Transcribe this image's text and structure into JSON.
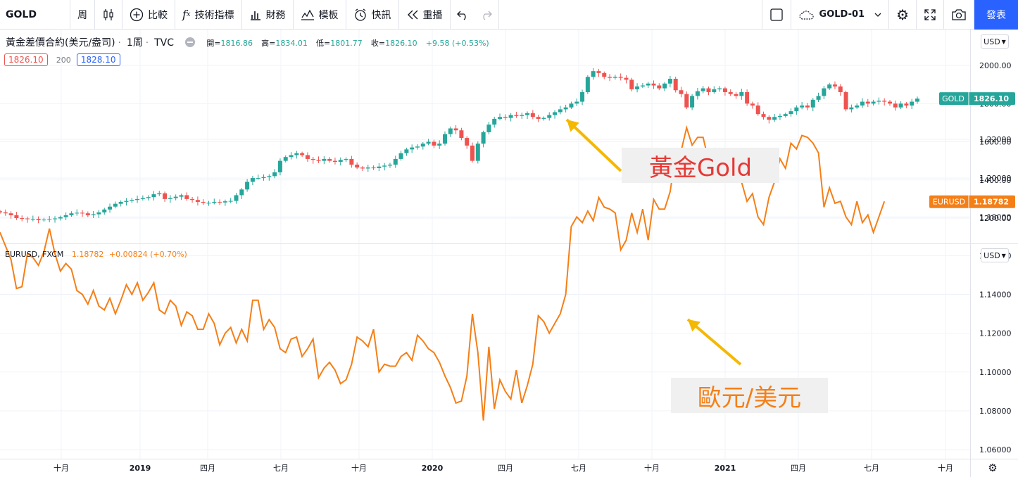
{
  "toolbar": {
    "symbol": "GOLD",
    "interval": "周",
    "compare": "比較",
    "indicators": "技術指標",
    "financials": "財務",
    "templates": "模板",
    "alerts": "快訊",
    "replay": "重播",
    "layout_name": "GOLD-01",
    "publish": "發表"
  },
  "gold_legend": {
    "title": "黃金差價合約(美元/盎司)",
    "interval": "1周",
    "source": "TVC",
    "open_label": "開=",
    "open": "1816.86",
    "high_label": "高=",
    "high": "1834.01",
    "low_label": "低=",
    "low": "1801.77",
    "close_label": "收=",
    "close": "1826.10",
    "change": "+9.58 (+0.53%)",
    "bid": "1826.10",
    "spread": "200",
    "ask": "1828.10"
  },
  "eurusd_legend": {
    "title": "EURUSD, FXCM",
    "value": "1.18782",
    "change": "+0.00824 (+0.70%)"
  },
  "currency_button": "USD",
  "gold_price_label": {
    "name": "GOLD",
    "value": "1826.10"
  },
  "eurusd_price_label": {
    "name": "EURUSD",
    "value": "1.18782"
  },
  "annotations": {
    "gold": "黃金Gold",
    "eurusd": "歐元/美元"
  },
  "colors": {
    "up": "#26a69a",
    "down": "#ef5350",
    "eurusd": "#f57f17",
    "arrow": "#f5b800",
    "accent": "#2962ff"
  },
  "chart_data": [
    {
      "type": "candlestick",
      "name": "GOLD",
      "ylim": [
        1140,
        2080
      ],
      "yticks": [
        "1200.00",
        "1400.00",
        "1600.00",
        "1800.00",
        "2000.00"
      ],
      "x_axis_labels": [
        "十月",
        "2019",
        "四月",
        "七月",
        "十月",
        "2020",
        "四月",
        "七月",
        "十月",
        "2021",
        "四月",
        "七月",
        "十月"
      ],
      "weekly_closes": [
        1230,
        1225,
        1215,
        1200,
        1198,
        1195,
        1196,
        1190,
        1192,
        1195,
        1198,
        1205,
        1215,
        1225,
        1228,
        1225,
        1215,
        1220,
        1230,
        1245,
        1260,
        1275,
        1285,
        1290,
        1295,
        1300,
        1305,
        1310,
        1325,
        1330,
        1300,
        1305,
        1312,
        1320,
        1300,
        1295,
        1285,
        1280,
        1280,
        1285,
        1282,
        1288,
        1290,
        1320,
        1350,
        1390,
        1410,
        1410,
        1415,
        1420,
        1440,
        1500,
        1520,
        1530,
        1540,
        1530,
        1510,
        1505,
        1500,
        1510,
        1500,
        1495,
        1505,
        1510,
        1480,
        1465,
        1460,
        1465,
        1462,
        1470,
        1475,
        1480,
        1510,
        1540,
        1560,
        1570,
        1575,
        1590,
        1600,
        1580,
        1590,
        1640,
        1670,
        1660,
        1620,
        1580,
        1500,
        1590,
        1650,
        1690,
        1720,
        1730,
        1725,
        1740,
        1735,
        1740,
        1750,
        1730,
        1720,
        1725,
        1740,
        1755,
        1770,
        1780,
        1800,
        1810,
        1860,
        1940,
        1970,
        1960,
        1940,
        1935,
        1940,
        1935,
        1925,
        1875,
        1890,
        1895,
        1905,
        1895,
        1880,
        1905,
        1930,
        1870,
        1850,
        1780,
        1840,
        1865,
        1880,
        1860,
        1875,
        1880,
        1860,
        1850,
        1840,
        1860,
        1800,
        1790,
        1745,
        1730,
        1715,
        1730,
        1735,
        1745,
        1760,
        1780,
        1790,
        1780,
        1820,
        1840,
        1880,
        1900,
        1890,
        1860,
        1770,
        1780,
        1790,
        1810,
        1800,
        1810,
        1815,
        1810,
        1800,
        1780,
        1800,
        1790,
        1810,
        1826
      ]
    },
    {
      "type": "line",
      "name": "EURUSD",
      "ylim": [
        1.055,
        1.24
      ],
      "yticks": [
        "1.06000",
        "1.08000",
        "1.10000",
        "1.12000",
        "1.14000",
        "1.16000",
        "1.18000",
        "1.20000",
        "1.22000"
      ],
      "weekly_values": [
        1.172,
        1.165,
        1.158,
        1.143,
        1.144,
        1.161,
        1.159,
        1.155,
        1.162,
        1.174,
        1.161,
        1.152,
        1.156,
        1.153,
        1.142,
        1.14,
        1.135,
        1.142,
        1.134,
        1.132,
        1.138,
        1.13,
        1.137,
        1.145,
        1.14,
        1.146,
        1.137,
        1.141,
        1.146,
        1.132,
        1.13,
        1.137,
        1.134,
        1.124,
        1.131,
        1.129,
        1.122,
        1.122,
        1.13,
        1.125,
        1.114,
        1.12,
        1.123,
        1.115,
        1.122,
        1.116,
        1.137,
        1.137,
        1.122,
        1.127,
        1.123,
        1.112,
        1.11,
        1.117,
        1.118,
        1.108,
        1.112,
        1.117,
        1.097,
        1.102,
        1.105,
        1.101,
        1.094,
        1.096,
        1.104,
        1.118,
        1.116,
        1.113,
        1.122,
        1.1,
        1.104,
        1.103,
        1.103,
        1.108,
        1.11,
        1.106,
        1.119,
        1.116,
        1.112,
        1.11,
        1.105,
        1.098,
        1.092,
        1.084,
        1.085,
        1.098,
        1.13,
        1.11,
        1.075,
        1.113,
        1.081,
        1.096,
        1.09,
        1.086,
        1.101,
        1.084,
        1.093,
        1.104,
        1.129,
        1.126,
        1.12,
        1.125,
        1.13,
        1.14,
        1.175,
        1.18,
        1.177,
        1.183,
        1.178,
        1.19,
        1.185,
        1.184,
        1.182,
        1.163,
        1.168,
        1.182,
        1.172,
        1.184,
        1.168,
        1.189,
        1.184,
        1.184,
        1.193,
        1.212,
        1.214,
        1.226,
        1.217,
        1.221,
        1.221,
        1.209,
        1.215,
        1.209,
        1.206,
        1.212,
        1.209,
        1.198,
        1.188,
        1.192,
        1.18,
        1.176,
        1.19,
        1.198,
        1.21,
        1.205,
        1.218,
        1.215,
        1.222,
        1.221,
        1.218,
        1.213,
        1.185,
        1.195,
        1.187,
        1.188,
        1.18,
        1.176,
        1.188,
        1.177,
        1.181,
        1.172,
        1.18,
        1.188
      ]
    }
  ]
}
